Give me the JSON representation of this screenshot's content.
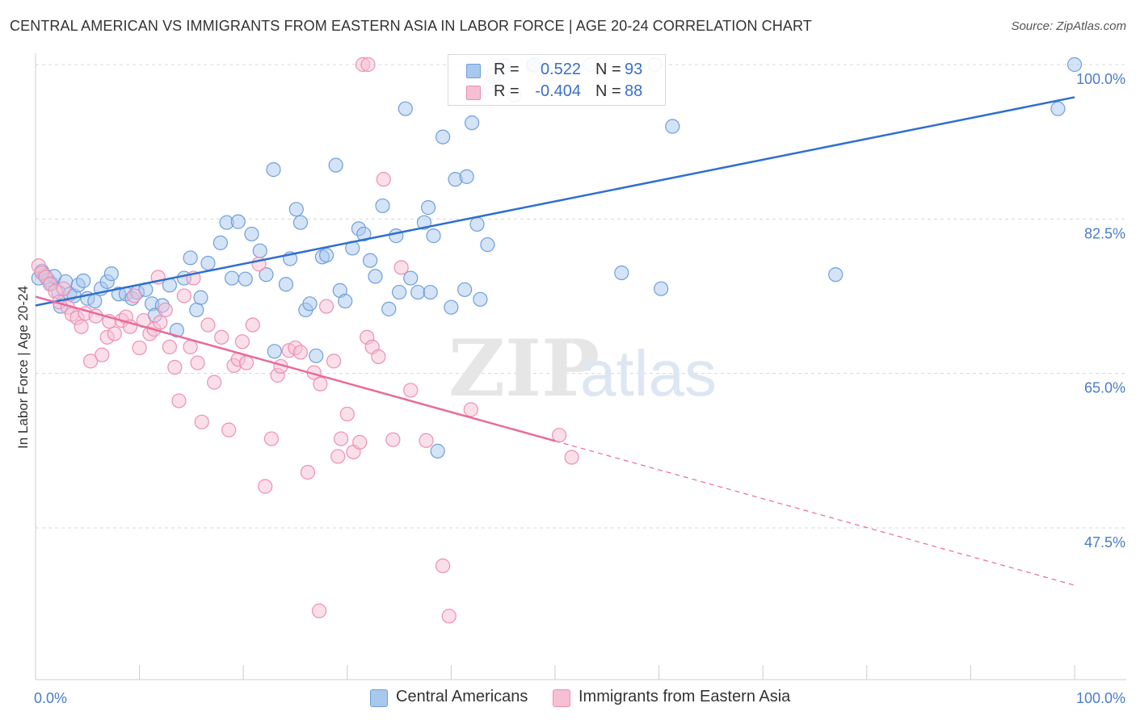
{
  "title": "CENTRAL AMERICAN VS IMMIGRANTS FROM EASTERN ASIA IN LABOR FORCE | AGE 20-24 CORRELATION CHART",
  "source": "Source: ZipAtlas.com",
  "watermark": "ZIPatlas",
  "legend": {
    "rows": [
      {
        "r_label": "R =",
        "r_value": "0.522",
        "n_label": "N =",
        "n_value": "93"
      },
      {
        "r_label": "R =",
        "r_value": "-0.404",
        "n_label": "N =",
        "n_value": "88"
      }
    ]
  },
  "bottom_legend": [
    "Central Americans",
    "Immigrants from Eastern Asia"
  ],
  "colors": {
    "blue_fill": "#a9c8ee",
    "blue_stroke": "#6f9fdc",
    "blue_line": "#2f6fd0",
    "pink_fill": "#f6bfd3",
    "pink_stroke": "#ee8fb2",
    "pink_line": "#e86a9a",
    "axis_text": "#4a7cc9",
    "grid": "#d8d8d8"
  },
  "chart_data": {
    "type": "scatter",
    "title": "CENTRAL AMERICAN VS IMMIGRANTS FROM EASTERN ASIA IN LABOR FORCE | AGE 20-24 CORRELATION CHART",
    "xlabel": "",
    "ylabel": "In Labor Force | Age 20-24",
    "xlim": [
      0,
      100
    ],
    "ylim": [
      30,
      101
    ],
    "x_tick_labels": [
      "0.0%",
      "100.0%"
    ],
    "y_ticks": [
      47.5,
      65.0,
      82.5,
      100.0
    ],
    "y_tick_labels": [
      "47.5%",
      "65.0%",
      "82.5%",
      "100.0%"
    ],
    "grid": true,
    "legend_position": "top-center",
    "series": [
      {
        "name": "Central Americans",
        "color": "#6f9fdc",
        "trend": {
          "x": [
            0,
            100
          ],
          "y": [
            72.7,
            96.3
          ]
        },
        "points": [
          [
            0.3,
            75.8
          ],
          [
            0.6,
            76.6
          ],
          [
            0.9,
            76.1
          ],
          [
            1.2,
            75.6
          ],
          [
            1.5,
            75.2
          ],
          [
            1.8,
            76.0
          ],
          [
            2.2,
            74.2
          ],
          [
            2.4,
            72.6
          ],
          [
            2.9,
            75.4
          ],
          [
            3.3,
            74.0
          ],
          [
            3.7,
            73.8
          ],
          [
            4.1,
            75.0
          ],
          [
            4.6,
            75.5
          ],
          [
            5.0,
            73.5
          ],
          [
            5.7,
            73.2
          ],
          [
            6.3,
            74.6
          ],
          [
            6.9,
            75.4
          ],
          [
            7.3,
            76.3
          ],
          [
            8.0,
            74.0
          ],
          [
            8.7,
            74.0
          ],
          [
            9.3,
            73.5
          ],
          [
            9.8,
            74.2
          ],
          [
            10.6,
            74.5
          ],
          [
            11.2,
            72.9
          ],
          [
            11.5,
            71.6
          ],
          [
            12.2,
            72.7
          ],
          [
            12.9,
            75.0
          ],
          [
            13.6,
            69.9
          ],
          [
            14.3,
            75.8
          ],
          [
            14.9,
            78.1
          ],
          [
            15.5,
            72.2
          ],
          [
            15.9,
            73.6
          ],
          [
            16.6,
            77.5
          ],
          [
            17.8,
            79.8
          ],
          [
            18.4,
            82.1
          ],
          [
            18.9,
            75.8
          ],
          [
            19.5,
            82.2
          ],
          [
            20.2,
            75.7
          ],
          [
            20.8,
            80.8
          ],
          [
            21.6,
            78.9
          ],
          [
            22.2,
            76.2
          ],
          [
            22.9,
            88.1
          ],
          [
            23.0,
            67.5
          ],
          [
            24.1,
            75.1
          ],
          [
            24.5,
            78.0
          ],
          [
            25.1,
            83.6
          ],
          [
            25.5,
            82.1
          ],
          [
            26.0,
            72.2
          ],
          [
            26.4,
            72.9
          ],
          [
            27.0,
            67.0
          ],
          [
            27.6,
            78.2
          ],
          [
            28.0,
            78.4
          ],
          [
            28.9,
            88.6
          ],
          [
            29.3,
            74.4
          ],
          [
            29.8,
            73.2
          ],
          [
            30.5,
            79.2
          ],
          [
            31.1,
            81.4
          ],
          [
            31.6,
            80.8
          ],
          [
            32.2,
            77.8
          ],
          [
            32.7,
            76.0
          ],
          [
            33.4,
            84.0
          ],
          [
            34.0,
            72.3
          ],
          [
            34.7,
            80.6
          ],
          [
            35.0,
            74.2
          ],
          [
            35.6,
            95.0
          ],
          [
            36.1,
            75.8
          ],
          [
            36.8,
            74.2
          ],
          [
            37.4,
            82.1
          ],
          [
            37.8,
            83.8
          ],
          [
            38.0,
            74.2
          ],
          [
            38.3,
            80.6
          ],
          [
            38.7,
            56.2
          ],
          [
            39.2,
            91.8
          ],
          [
            40.0,
            72.5
          ],
          [
            40.4,
            87.0
          ],
          [
            41.3,
            74.5
          ],
          [
            41.5,
            87.3
          ],
          [
            42.0,
            93.4
          ],
          [
            42.5,
            81.9
          ],
          [
            42.8,
            73.4
          ],
          [
            43.5,
            79.6
          ],
          [
            43.8,
            97.5
          ],
          [
            44.0,
            98.8
          ],
          [
            45.1,
            99.9
          ],
          [
            46.1,
            96.5
          ],
          [
            47.9,
            99.9
          ],
          [
            48.0,
            100.0
          ],
          [
            53.4,
            100.0
          ],
          [
            56.4,
            76.4
          ],
          [
            59.6,
            100.0
          ],
          [
            60.2,
            74.6
          ],
          [
            61.3,
            93.0
          ],
          [
            77.0,
            76.2
          ],
          [
            98.4,
            95.0
          ],
          [
            100.0,
            100.0
          ]
        ]
      },
      {
        "name": "Immigrants from Eastern Asia",
        "color": "#ee8fb2",
        "trend": {
          "x": [
            0,
            100
          ],
          "y": [
            73.7,
            41.0
          ]
        },
        "points": [
          [
            0.3,
            77.2
          ],
          [
            0.6,
            76.4
          ],
          [
            1.0,
            75.9
          ],
          [
            1.4,
            75.1
          ],
          [
            1.9,
            74.3
          ],
          [
            2.3,
            73.1
          ],
          [
            2.7,
            74.6
          ],
          [
            3.1,
            72.5
          ],
          [
            3.5,
            71.7
          ],
          [
            4.0,
            71.3
          ],
          [
            4.4,
            70.3
          ],
          [
            4.8,
            71.8
          ],
          [
            5.3,
            66.4
          ],
          [
            5.8,
            71.5
          ],
          [
            6.4,
            67.1
          ],
          [
            6.9,
            69.1
          ],
          [
            7.1,
            70.9
          ],
          [
            7.6,
            69.5
          ],
          [
            8.3,
            71.0
          ],
          [
            8.7,
            71.4
          ],
          [
            9.1,
            70.3
          ],
          [
            9.5,
            73.8
          ],
          [
            10.0,
            67.9
          ],
          [
            10.4,
            71.0
          ],
          [
            11.0,
            69.5
          ],
          [
            11.4,
            70.0
          ],
          [
            11.8,
            75.9
          ],
          [
            12.0,
            70.8
          ],
          [
            12.5,
            72.2
          ],
          [
            12.9,
            68.0
          ],
          [
            13.4,
            65.7
          ],
          [
            13.8,
            61.9
          ],
          [
            14.3,
            73.8
          ],
          [
            14.9,
            68.0
          ],
          [
            15.2,
            75.8
          ],
          [
            15.6,
            66.2
          ],
          [
            16.0,
            59.5
          ],
          [
            16.6,
            70.5
          ],
          [
            17.2,
            64.0
          ],
          [
            17.9,
            69.1
          ],
          [
            18.6,
            58.6
          ],
          [
            19.1,
            65.9
          ],
          [
            19.5,
            66.6
          ],
          [
            19.9,
            68.6
          ],
          [
            20.3,
            66.2
          ],
          [
            20.9,
            70.5
          ],
          [
            21.5,
            77.4
          ],
          [
            22.1,
            52.2
          ],
          [
            22.7,
            57.6
          ],
          [
            23.3,
            64.8
          ],
          [
            23.6,
            65.8
          ],
          [
            24.4,
            67.6
          ],
          [
            25.0,
            67.9
          ],
          [
            25.5,
            67.4
          ],
          [
            26.2,
            53.8
          ],
          [
            26.8,
            65.1
          ],
          [
            27.4,
            63.8
          ],
          [
            28.0,
            72.6
          ],
          [
            28.7,
            66.4
          ],
          [
            29.1,
            55.6
          ],
          [
            29.4,
            57.6
          ],
          [
            30.0,
            60.4
          ],
          [
            30.6,
            56.1
          ],
          [
            31.2,
            57.2
          ],
          [
            31.9,
            69.1
          ],
          [
            32.4,
            68.0
          ],
          [
            33.0,
            66.9
          ],
          [
            33.5,
            87.0
          ],
          [
            34.4,
            57.5
          ],
          [
            35.2,
            77.0
          ],
          [
            36.1,
            63.1
          ],
          [
            37.6,
            57.4
          ],
          [
            39.2,
            43.2
          ],
          [
            39.8,
            37.5
          ],
          [
            41.9,
            60.9
          ],
          [
            50.4,
            58.0
          ],
          [
            51.6,
            55.5
          ],
          [
            27.3,
            38.1
          ],
          [
            31.5,
            100.0
          ],
          [
            32.0,
            100.0
          ]
        ]
      }
    ]
  }
}
